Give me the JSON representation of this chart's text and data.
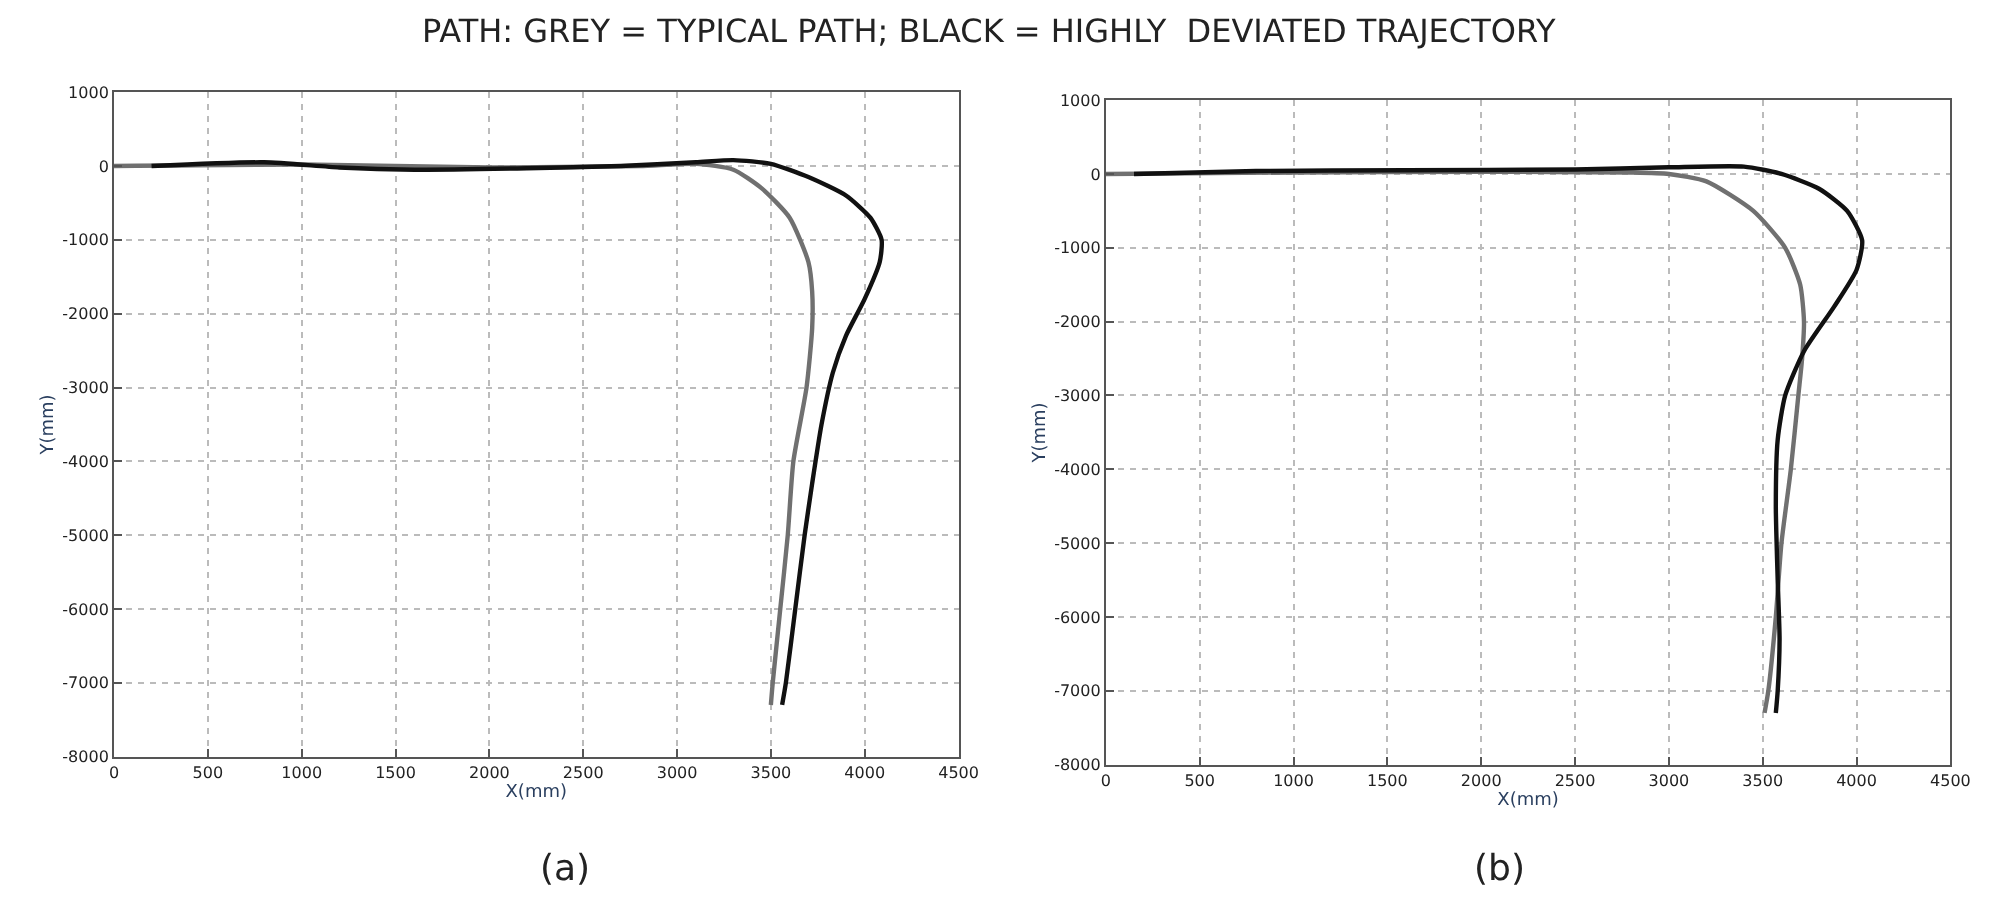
{
  "chart_data": [
    {
      "type": "line",
      "title": "PATH: GREY = TYPICAL PATH; BLACK = HIGHLY  DEVIATED TRAJECTORY",
      "xlabel": "X(mm)",
      "ylabel": "Y(mm)",
      "annotations": [
        "(a)"
      ],
      "xlim": [
        0,
        4500
      ],
      "ylim": [
        -8000,
        1000
      ],
      "xticks": [
        0,
        500,
        1000,
        1500,
        2000,
        2500,
        3000,
        3500,
        4000,
        4500
      ],
      "yticks": [
        -8000,
        -7000,
        -6000,
        -5000,
        -4000,
        -3000,
        -2000,
        -1000,
        0,
        1000
      ],
      "grid": true,
      "line_style": "solid",
      "series": [
        {
          "color": "#707070",
          "x": [
            0,
            1000,
            2000,
            2800,
            3100,
            3300,
            3450,
            3600,
            3700,
            3720,
            3720,
            3690,
            3620,
            3590,
            3550,
            3510,
            3500
          ],
          "values": [
            0,
            20,
            -20,
            0,
            30,
            -50,
            -300,
            -700,
            -1300,
            -1700,
            -2200,
            -3000,
            -4000,
            -5000,
            -6000,
            -7000,
            -7300
          ]
        },
        {
          "color": "#111111",
          "x": [
            200,
            800,
            1200,
            1600,
            2200,
            2700,
            3100,
            3300,
            3500,
            3700,
            3900,
            4030,
            4090,
            4080,
            4000,
            3900,
            3830,
            3770,
            3720,
            3680,
            3630,
            3580,
            3560
          ],
          "values": [
            0,
            50,
            -20,
            -50,
            -30,
            0,
            50,
            80,
            30,
            -150,
            -400,
            -700,
            -1000,
            -1300,
            -1800,
            -2300,
            -2800,
            -3500,
            -4300,
            -5000,
            -6000,
            -7000,
            -7300
          ]
        }
      ]
    },
    {
      "type": "line",
      "xlabel": "X(mm)",
      "ylabel": "Y(mm)",
      "annotations": [
        "(b)"
      ],
      "xlim": [
        0,
        4500
      ],
      "ylim": [
        -8000,
        1000
      ],
      "xticks": [
        0,
        500,
        1000,
        1500,
        2000,
        2500,
        3000,
        3500,
        4000,
        4500
      ],
      "yticks": [
        -8000,
        -7000,
        -6000,
        -5000,
        -4000,
        -3000,
        -2000,
        -1000,
        0,
        1000
      ],
      "grid": true,
      "line_style": "solid",
      "series": [
        {
          "color": "#707070",
          "x": [
            0,
            1000,
            2000,
            2800,
            3000,
            3200,
            3450,
            3620,
            3700,
            3720,
            3710,
            3690,
            3650,
            3600,
            3570,
            3530,
            3510
          ],
          "values": [
            0,
            20,
            30,
            20,
            0,
            -100,
            -500,
            -1000,
            -1500,
            -2000,
            -2500,
            -3000,
            -4000,
            -5000,
            -6000,
            -7000,
            -7300
          ]
        },
        {
          "color": "#111111",
          "x": [
            150,
            800,
            1600,
            2500,
            3000,
            3400,
            3600,
            3800,
            3950,
            4030,
            4000,
            3880,
            3720,
            3620,
            3580,
            3570,
            3580,
            3590,
            3580,
            3570
          ],
          "values": [
            0,
            40,
            50,
            60,
            90,
            100,
            0,
            -200,
            -500,
            -900,
            -1300,
            -1800,
            -2400,
            -3000,
            -3600,
            -4500,
            -5500,
            -6300,
            -7000,
            -7300
          ]
        }
      ]
    }
  ]
}
